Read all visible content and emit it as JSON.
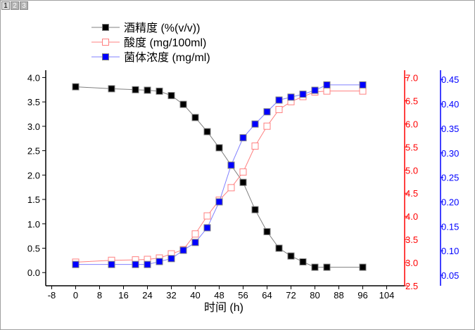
{
  "page_tabs": [
    "1",
    "2",
    "3"
  ],
  "chart_data": {
    "type": "line",
    "xlabel": "时间 (h)",
    "xlim": [
      -10,
      110
    ],
    "xticks": [
      -8,
      0,
      8,
      16,
      24,
      32,
      40,
      48,
      56,
      64,
      72,
      80,
      88,
      96,
      104
    ],
    "x": [
      0,
      12,
      20,
      24,
      28,
      32,
      36,
      40,
      44,
      48,
      52,
      56,
      60,
      64,
      68,
      72,
      76,
      80,
      84,
      96
    ],
    "axes": [
      {
        "id": "left",
        "ylim": [
          -0.27,
          4.15
        ],
        "ticks": [
          "0.0",
          "0.5",
          "1.0",
          "1.5",
          "2.0",
          "2.5",
          "3.0",
          "3.5",
          "4.0"
        ],
        "color": "#000000"
      },
      {
        "id": "right1",
        "ylim": [
          2.5,
          7.16
        ],
        "ticks": [
          "2.5",
          "3.0",
          "3.5",
          "4.0",
          "4.5",
          "5.0",
          "5.5",
          "6.0",
          "6.5",
          "7.0"
        ],
        "color": "#ff0000"
      },
      {
        "id": "right2",
        "ylim": [
          0.0285,
          0.469
        ],
        "ticks": [
          "0.05",
          "0.10",
          "0.15",
          "0.20",
          "0.25",
          "0.30",
          "0.35",
          "0.40",
          "0.45"
        ],
        "color": "#0000ff"
      }
    ],
    "series": [
      {
        "name": "酒精度 (%(v/v))",
        "axis": "left",
        "line_color": "#808080",
        "marker_color": "#000000",
        "marker": "filled-square",
        "values": [
          3.81,
          3.77,
          3.75,
          3.74,
          3.72,
          3.63,
          3.45,
          3.18,
          2.89,
          2.56,
          2.2,
          1.85,
          1.29,
          0.84,
          0.5,
          0.34,
          0.22,
          0.11,
          0.11,
          0.11
        ]
      },
      {
        "name": "酸度 (mg/100ml)",
        "axis": "right1",
        "line_color": "#ff8080",
        "marker_color": "#ff8080",
        "marker": "open-square",
        "values": [
          3.01,
          3.05,
          3.06,
          3.07,
          3.1,
          3.19,
          3.28,
          3.62,
          4.01,
          4.35,
          4.62,
          4.96,
          5.52,
          5.95,
          6.31,
          6.48,
          6.59,
          6.69,
          6.71,
          6.71
        ]
      },
      {
        "name": "菌体浓度 (mg/ml)",
        "axis": "right2",
        "line_color": "#8080ff",
        "marker_color": "#0000ff",
        "marker": "filled-square",
        "values": [
          0.072,
          0.072,
          0.072,
          0.072,
          0.078,
          0.084,
          0.101,
          0.117,
          0.147,
          0.2,
          0.275,
          0.331,
          0.359,
          0.384,
          0.408,
          0.414,
          0.42,
          0.428,
          0.439,
          0.439
        ]
      }
    ],
    "legend_position": "top-left",
    "grid": false
  }
}
